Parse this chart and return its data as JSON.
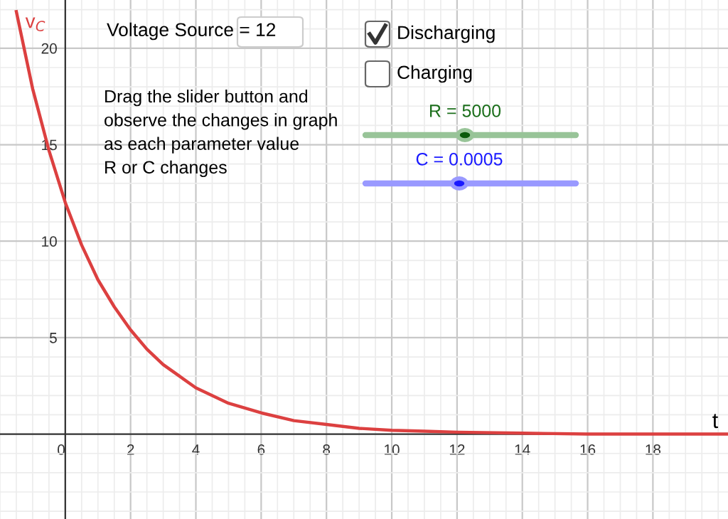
{
  "chart_data": {
    "type": "line",
    "xlabel": "t",
    "ylabel": "v$_{C}$",
    "x": [
      -1.5,
      -1,
      -0.5,
      0,
      0.5,
      1,
      1.5,
      2,
      2.5,
      3,
      3.5,
      4,
      5,
      6,
      7,
      8,
      9,
      10,
      11,
      12,
      14,
      16,
      18,
      20.3
    ],
    "series": [
      {
        "color": "#dc4040",
        "values": [
          21.9,
          17.9,
          14.7,
          12,
          9.8,
          8.0,
          6.6,
          5.4,
          4.4,
          3.6,
          3.0,
          2.4,
          1.6,
          1.1,
          0.7,
          0.5,
          0.3,
          0.2,
          0.15,
          0.1,
          0.05,
          0,
          0,
          0
        ]
      }
    ],
    "xlim": [
      -2,
      20.3
    ],
    "ylim": [
      -4.4,
      22.5
    ],
    "xticks": [
      0,
      2,
      4,
      6,
      8,
      10,
      12,
      14,
      16,
      18
    ],
    "yticks": [
      5,
      10,
      15,
      20
    ],
    "grid": true,
    "marker": "none",
    "line_style": "solid",
    "annotations": [
      "Voltage Source = 12",
      "Discharging",
      "Charging",
      "R = 5000",
      "C = 0.0005",
      "Drag the slider button and\nobserve the changes in graph\nas each parameter value\nR or C changes"
    ]
  }
}
